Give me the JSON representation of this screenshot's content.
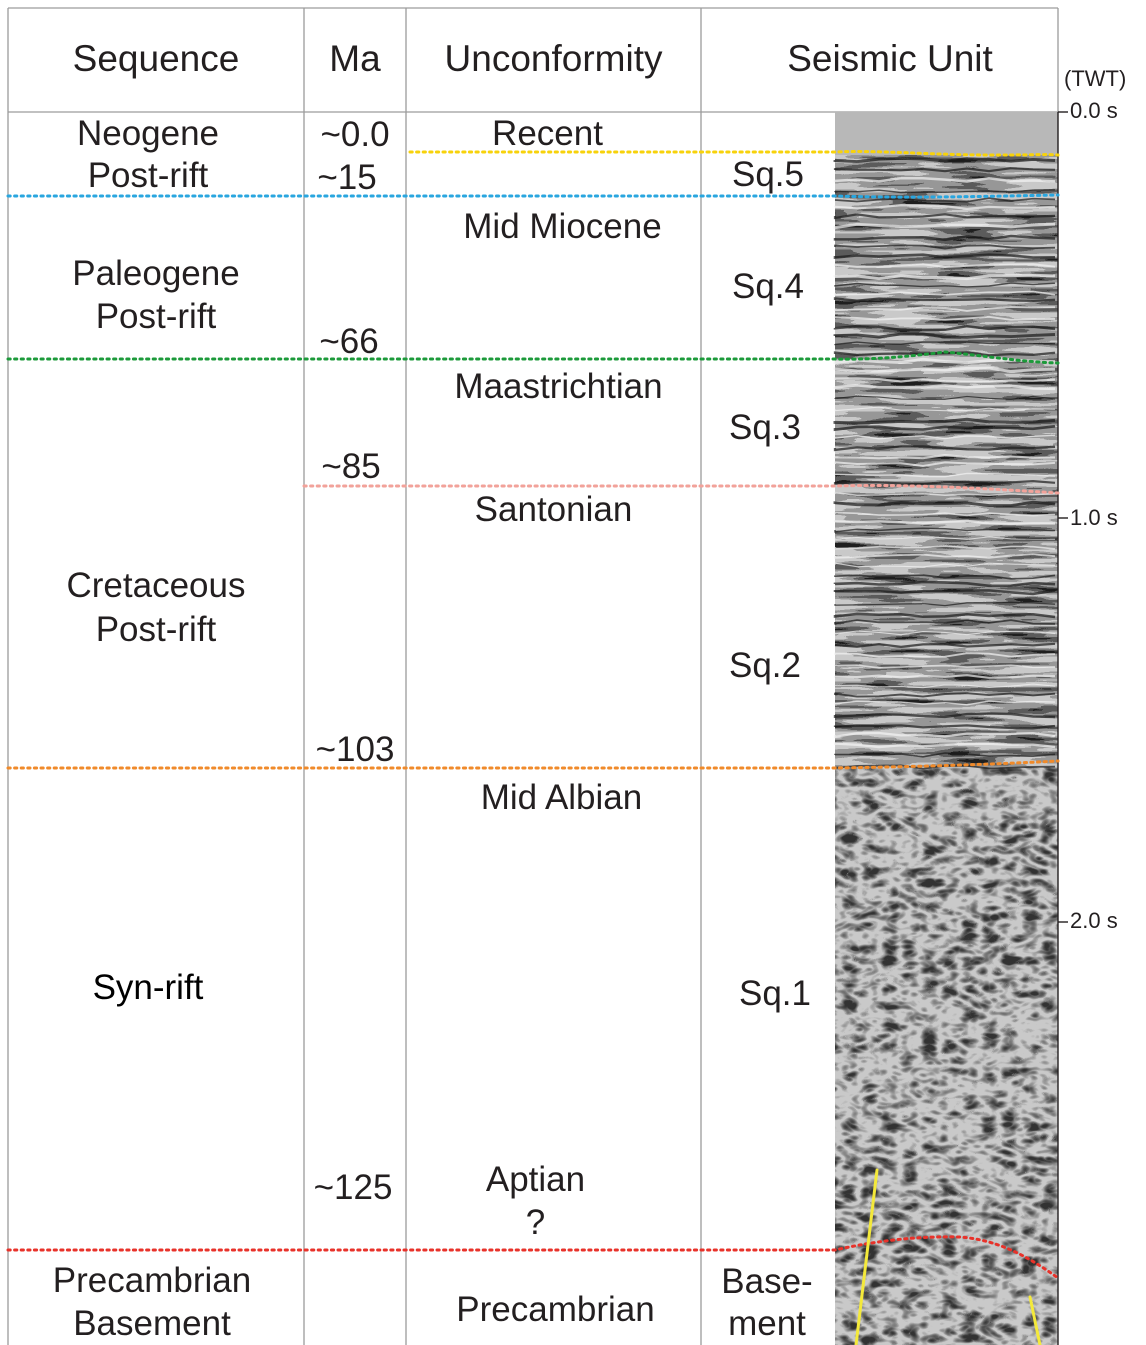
{
  "headers": {
    "sequence": "Sequence",
    "ma": "Ma",
    "unconformity": "Unconformity",
    "seismic_unit": "Seismic Unit",
    "twt": "(TWT)"
  },
  "time_ticks": [
    "0.0 s",
    "1.0 s",
    "2.0 s"
  ],
  "sequences": [
    {
      "line1": "Neogene",
      "line2": "Post-rift"
    },
    {
      "line1": "Paleogene",
      "line2": "Post-rift"
    },
    {
      "line1": "Cretaceous",
      "line2": "Post-rift"
    },
    {
      "line1": "Syn-rift"
    },
    {
      "line1": "Precambrian",
      "line2": "Basement"
    }
  ],
  "ages": [
    "~0.0",
    "~15",
    "~66",
    "~85",
    "~103",
    "~125"
  ],
  "unconformities": {
    "recent": "Recent",
    "mid_miocene": "Mid Miocene",
    "maastrichtian": "Maastrichtian",
    "santonian": "Santonian",
    "mid_albian": "Mid Albian",
    "aptian": "Aptian",
    "aptian_query": "?",
    "precambrian": "Precambrian"
  },
  "seismic_units": {
    "sq5": "Sq.5",
    "sq4": "Sq.4",
    "sq3": "Sq.3",
    "sq2": "Sq.2",
    "sq1": "Sq.1",
    "basement_1": "Base-",
    "basement_2": "ment"
  },
  "boundary_colors": {
    "recent": "#f7d20b",
    "mid_miocene": "#29a6df",
    "maastrichtian": "#1c9a3a",
    "santonian": "#f2a29a",
    "mid_albian": "#f08a2a",
    "aptian": "#e8322a",
    "fault": "#f4e93a"
  }
}
